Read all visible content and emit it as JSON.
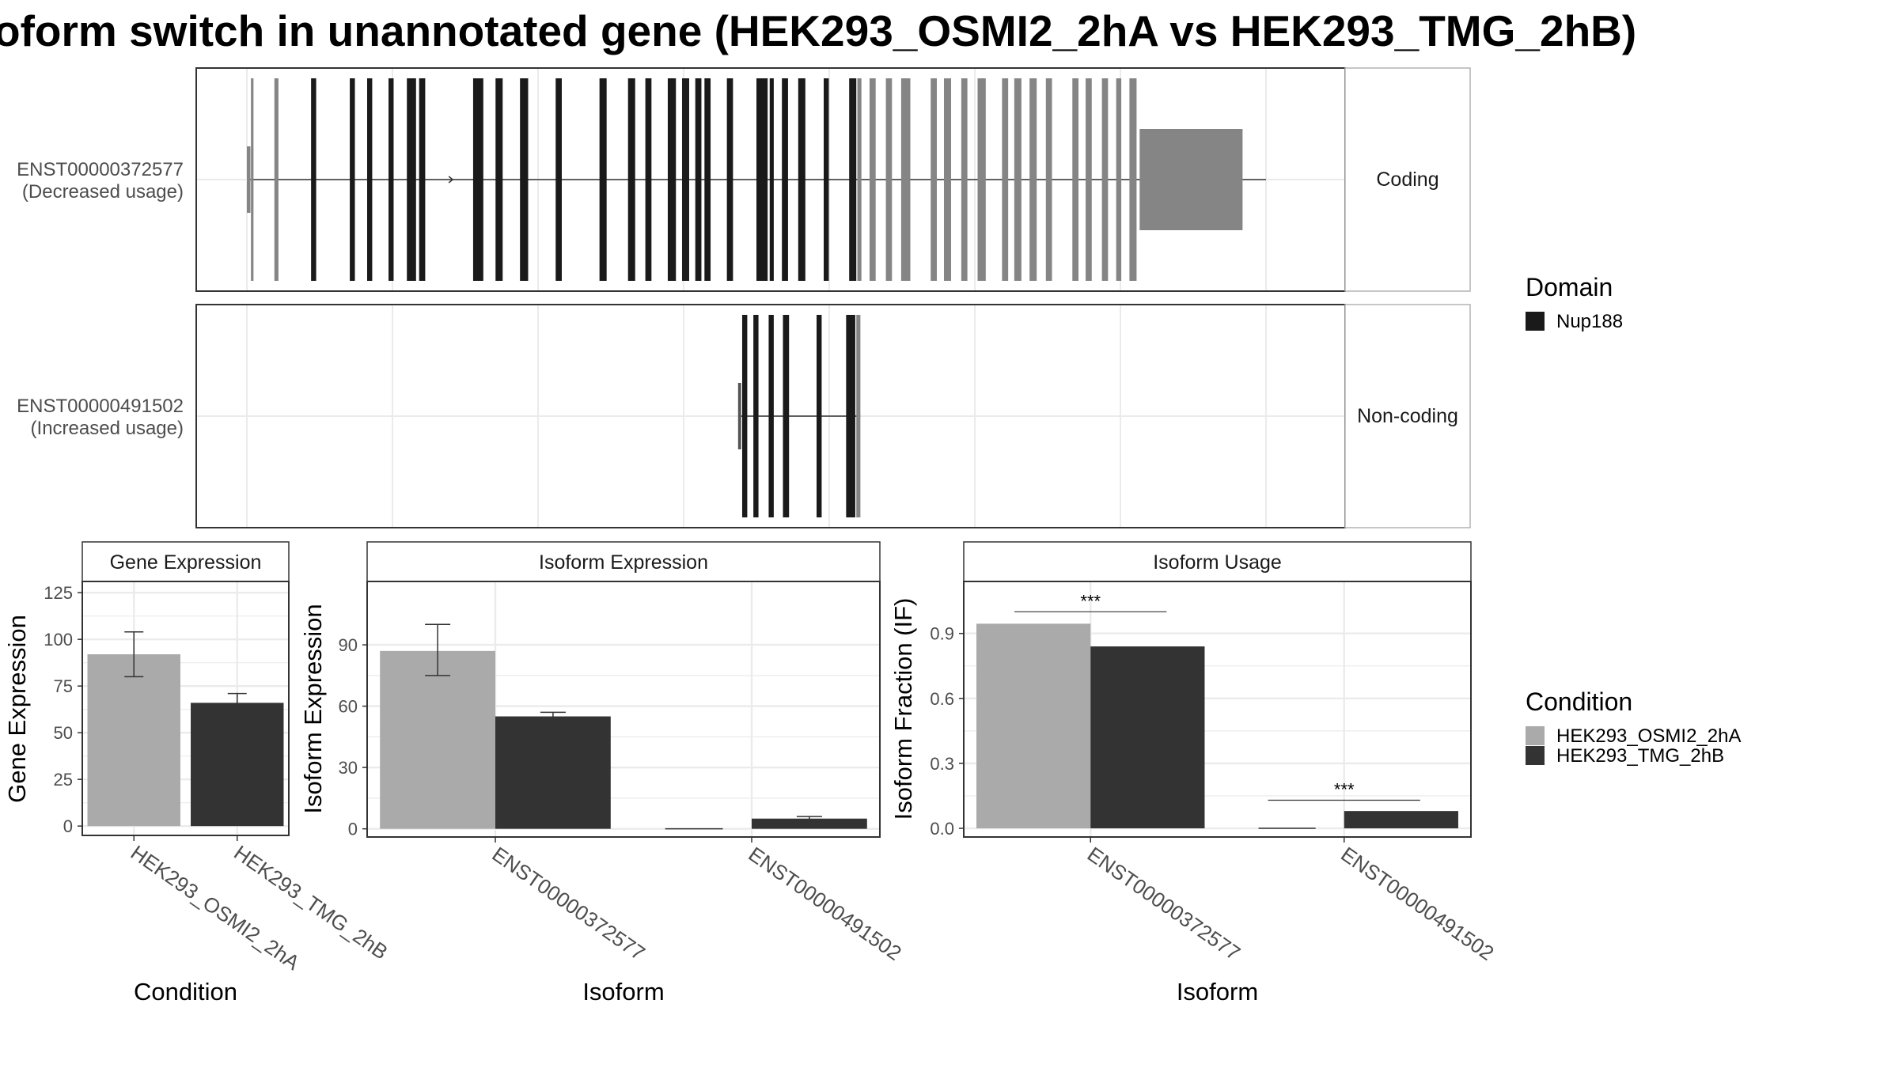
{
  "title": "oform switch in unannotated gene (HEK293_OSMI2_2hA vs HEK293_TMG_2hB)",
  "colors": {
    "osmi": "#aaaaaa",
    "tmg": "#333333",
    "domain": "#1a1a1a",
    "non_domain_exon": "#858585",
    "panel_border": "#333333",
    "strip_fill": "#ffffff",
    "grid": "#ebebeb"
  },
  "structure": {
    "isoforms": [
      {
        "id": "ENST00000372577",
        "label_line1": "ENST00000372577",
        "label_line2": "(Decreased usage)",
        "class": "Coding",
        "cds_start": 0.005,
        "cds_end": 0.975,
        "intron_start": 0.0,
        "intron_end": 1.0,
        "exons": [
          {
            "s": 0.0,
            "e": 0.0035,
            "type": "utr"
          },
          {
            "s": 0.004,
            "e": 0.0065,
            "type": "other"
          },
          {
            "s": 0.027,
            "e": 0.031,
            "type": "other"
          },
          {
            "s": 0.063,
            "e": 0.068,
            "type": "domain"
          },
          {
            "s": 0.101,
            "e": 0.106,
            "type": "domain"
          },
          {
            "s": 0.118,
            "e": 0.123,
            "type": "domain"
          },
          {
            "s": 0.139,
            "e": 0.144,
            "type": "domain"
          },
          {
            "s": 0.157,
            "e": 0.166,
            "type": "domain"
          },
          {
            "s": 0.169,
            "e": 0.175,
            "type": "domain"
          },
          {
            "s": 0.222,
            "e": 0.232,
            "type": "domain"
          },
          {
            "s": 0.244,
            "e": 0.251,
            "type": "domain"
          },
          {
            "s": 0.268,
            "e": 0.276,
            "type": "domain"
          },
          {
            "s": 0.303,
            "e": 0.309,
            "type": "domain"
          },
          {
            "s": 0.346,
            "e": 0.353,
            "type": "domain"
          },
          {
            "s": 0.374,
            "e": 0.381,
            "type": "domain"
          },
          {
            "s": 0.391,
            "e": 0.397,
            "type": "domain"
          },
          {
            "s": 0.413,
            "e": 0.421,
            "type": "domain"
          },
          {
            "s": 0.427,
            "e": 0.434,
            "type": "domain"
          },
          {
            "s": 0.44,
            "e": 0.446,
            "type": "domain"
          },
          {
            "s": 0.449,
            "e": 0.455,
            "type": "domain"
          },
          {
            "s": 0.471,
            "e": 0.477,
            "type": "domain"
          },
          {
            "s": 0.5,
            "e": 0.511,
            "type": "domain"
          },
          {
            "s": 0.513,
            "e": 0.517,
            "type": "domain"
          },
          {
            "s": 0.525,
            "e": 0.531,
            "type": "domain"
          },
          {
            "s": 0.541,
            "e": 0.548,
            "type": "domain"
          },
          {
            "s": 0.566,
            "e": 0.571,
            "type": "domain"
          },
          {
            "s": 0.591,
            "e": 0.598,
            "type": "domain"
          },
          {
            "s": 0.599,
            "e": 0.603,
            "type": "other"
          },
          {
            "s": 0.611,
            "e": 0.617,
            "type": "other"
          },
          {
            "s": 0.627,
            "e": 0.633,
            "type": "other"
          },
          {
            "s": 0.642,
            "e": 0.651,
            "type": "other"
          },
          {
            "s": 0.671,
            "e": 0.677,
            "type": "other"
          },
          {
            "s": 0.684,
            "e": 0.691,
            "type": "other"
          },
          {
            "s": 0.701,
            "e": 0.707,
            "type": "other"
          },
          {
            "s": 0.717,
            "e": 0.725,
            "type": "other"
          },
          {
            "s": 0.741,
            "e": 0.747,
            "type": "other"
          },
          {
            "s": 0.753,
            "e": 0.76,
            "type": "other"
          },
          {
            "s": 0.768,
            "e": 0.775,
            "type": "other"
          },
          {
            "s": 0.784,
            "e": 0.79,
            "type": "other"
          },
          {
            "s": 0.81,
            "e": 0.816,
            "type": "other"
          },
          {
            "s": 0.823,
            "e": 0.829,
            "type": "other"
          },
          {
            "s": 0.839,
            "e": 0.845,
            "type": "other"
          },
          {
            "s": 0.853,
            "e": 0.858,
            "type": "other"
          },
          {
            "s": 0.866,
            "e": 0.873,
            "type": "other"
          },
          {
            "s": 0.876,
            "e": 0.977,
            "type": "utr"
          }
        ],
        "arrows": [
          0.202,
          0.228
        ]
      },
      {
        "id": "ENST00000491502",
        "label_line1": "ENST00000491502",
        "label_line2": "(Increased usage)",
        "class": "Non-coding",
        "cds_start": null,
        "cds_end": null,
        "intron_start": 0.484,
        "intron_end": 0.602,
        "exons": [
          {
            "s": 0.482,
            "e": 0.485,
            "type": "utr"
          },
          {
            "s": 0.486,
            "e": 0.491,
            "type": "domain"
          },
          {
            "s": 0.497,
            "e": 0.502,
            "type": "domain"
          },
          {
            "s": 0.512,
            "e": 0.517,
            "type": "domain"
          },
          {
            "s": 0.526,
            "e": 0.532,
            "type": "domain"
          },
          {
            "s": 0.559,
            "e": 0.564,
            "type": "domain"
          },
          {
            "s": 0.588,
            "e": 0.597,
            "type": "domain"
          },
          {
            "s": 0.598,
            "e": 0.602,
            "type": "other"
          }
        ],
        "arrows": []
      }
    ]
  },
  "legends": {
    "domain": {
      "title": "Domain",
      "items": [
        "Nup188"
      ]
    },
    "condition": {
      "title": "Condition",
      "items": [
        "HEK293_OSMI2_2hA",
        "HEK293_TMG_2hB"
      ]
    }
  },
  "chart_data": [
    {
      "type": "bar",
      "strip": "Gene Expression",
      "ylabel": "Gene Expression",
      "xlabel": "Condition",
      "categories": [
        "HEK293_OSMI2_2hA",
        "HEK293_TMG_2hB"
      ],
      "values": [
        92,
        66
      ],
      "errors": [
        [
          80,
          104
        ],
        [
          61,
          71
        ]
      ],
      "ylim": [
        -5,
        131
      ],
      "yticks": [
        0,
        25,
        50,
        75,
        100,
        125
      ]
    },
    {
      "type": "bar",
      "strip": "Isoform Expression",
      "ylabel": "Isoform Expression",
      "xlabel": "Isoform",
      "categories": [
        "ENST00000372577",
        "ENST00000491502"
      ],
      "series": [
        {
          "name": "HEK293_OSMI2_2hA",
          "values": [
            87,
            0
          ],
          "errors": [
            [
              75,
              100
            ],
            [
              0,
              0
            ]
          ]
        },
        {
          "name": "HEK293_TMG_2hB",
          "values": [
            55,
            5
          ],
          "errors": [
            [
              53,
              57
            ],
            [
              4,
              6
            ]
          ]
        }
      ],
      "ylim": [
        -4,
        121
      ],
      "yticks": [
        0,
        30,
        60,
        90
      ]
    },
    {
      "type": "bar",
      "strip": "Isoform Usage",
      "ylabel": "Isoform Fraction (IF)",
      "xlabel": "Isoform",
      "categories": [
        "ENST00000372577",
        "ENST00000491502"
      ],
      "series": [
        {
          "name": "HEK293_OSMI2_2hA",
          "values": [
            0.945,
            0.0
          ]
        },
        {
          "name": "HEK293_TMG_2hB",
          "values": [
            0.84,
            0.08
          ]
        }
      ],
      "significance": [
        {
          "category": "ENST00000372577",
          "label": "***",
          "y": 1.0
        },
        {
          "category": "ENST00000491502",
          "label": "***",
          "y": 0.13
        }
      ],
      "ylim": [
        -0.04,
        1.14
      ],
      "yticks": [
        0.0,
        0.3,
        0.6,
        0.9
      ],
      "ytick_labels": [
        "0.0",
        "0.3",
        "0.6",
        "0.9"
      ]
    }
  ]
}
